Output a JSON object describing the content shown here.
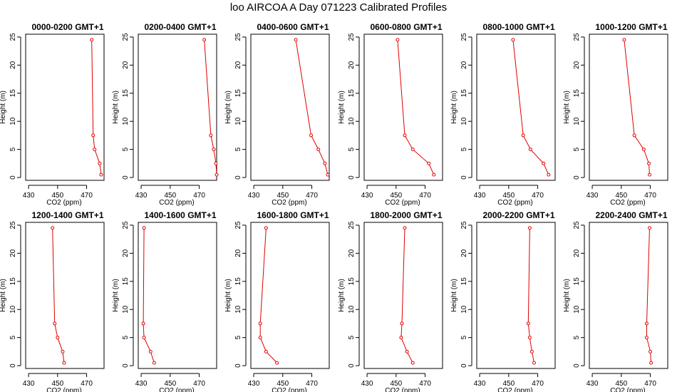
{
  "figure": {
    "title": "loo AIRCOA A  Day 071223  Calibrated Profiles",
    "xlabel": "CO2 (ppm)",
    "ylabel": "Height (m)",
    "xticks": [
      430,
      450,
      470
    ],
    "yticks": [
      0,
      5,
      10,
      15,
      20,
      25
    ],
    "xlim": [
      428,
      482
    ],
    "ylim": [
      -0.5,
      25.5
    ],
    "line_color": "#e00000",
    "marker": "open-circle"
  },
  "chart_data": [
    {
      "type": "line",
      "title": "0000-0200 GMT+1",
      "heights": [
        0.5,
        2.5,
        5,
        7.5,
        24.5
      ],
      "values": [
        480,
        479,
        475.5,
        474.5,
        473.5
      ]
    },
    {
      "type": "line",
      "title": "0200-0400 GMT+1",
      "heights": [
        0.5,
        2.5,
        5,
        7.5,
        24.5
      ],
      "values": [
        482,
        481.5,
        480,
        478,
        473.5
      ]
    },
    {
      "type": "line",
      "title": "0400-0600 GMT+1",
      "heights": [
        0.5,
        2.5,
        5,
        7.5,
        24.5
      ],
      "values": [
        481,
        479,
        474.5,
        469.5,
        459
      ]
    },
    {
      "type": "line",
      "title": "0600-0800 GMT+1",
      "heights": [
        0.5,
        2.5,
        5,
        7.5,
        24.5
      ],
      "values": [
        476,
        472.5,
        461.5,
        456,
        451
      ]
    },
    {
      "type": "line",
      "title": "0800-1000 GMT+1",
      "heights": [
        0.5,
        2.5,
        5,
        7.5,
        24.5
      ],
      "values": [
        477.5,
        474,
        465,
        460,
        453
      ]
    },
    {
      "type": "line",
      "title": "1000-1200 GMT+1",
      "heights": [
        0.5,
        2.5,
        5,
        7.5,
        24.5
      ],
      "values": [
        469.5,
        469,
        465.5,
        459,
        452
      ]
    },
    {
      "type": "line",
      "title": "1200-1400 GMT+1",
      "heights": [
        0.5,
        2.5,
        5,
        7.5,
        24.5
      ],
      "values": [
        454.5,
        453.5,
        450,
        448,
        446.5
      ]
    },
    {
      "type": "line",
      "title": "1400-1600 GMT+1",
      "heights": [
        0.5,
        2.5,
        5,
        7.5,
        24.5
      ],
      "values": [
        439,
        436.5,
        432,
        431.5,
        432
      ]
    },
    {
      "type": "line",
      "title": "1600-1800 GMT+1",
      "heights": [
        0.5,
        2.5,
        5,
        7.5,
        24.5
      ],
      "values": [
        446,
        438.5,
        434.5,
        434.5,
        438.5
      ]
    },
    {
      "type": "line",
      "title": "1800-2000 GMT+1",
      "heights": [
        0.5,
        2.5,
        5,
        7.5,
        24.5
      ],
      "values": [
        461.5,
        457.5,
        453.5,
        454,
        456
      ]
    },
    {
      "type": "line",
      "title": "2000-2200 GMT+1",
      "heights": [
        0.5,
        2.5,
        5,
        7.5,
        24.5
      ],
      "values": [
        467.5,
        466,
        464.5,
        463.5,
        464.5
      ]
    },
    {
      "type": "line",
      "title": "2200-2400 GMT+1",
      "heights": [
        0.5,
        2.5,
        5,
        7.5,
        24.5
      ],
      "values": [
        470.5,
        470,
        467.5,
        467.5,
        469.5
      ]
    }
  ]
}
